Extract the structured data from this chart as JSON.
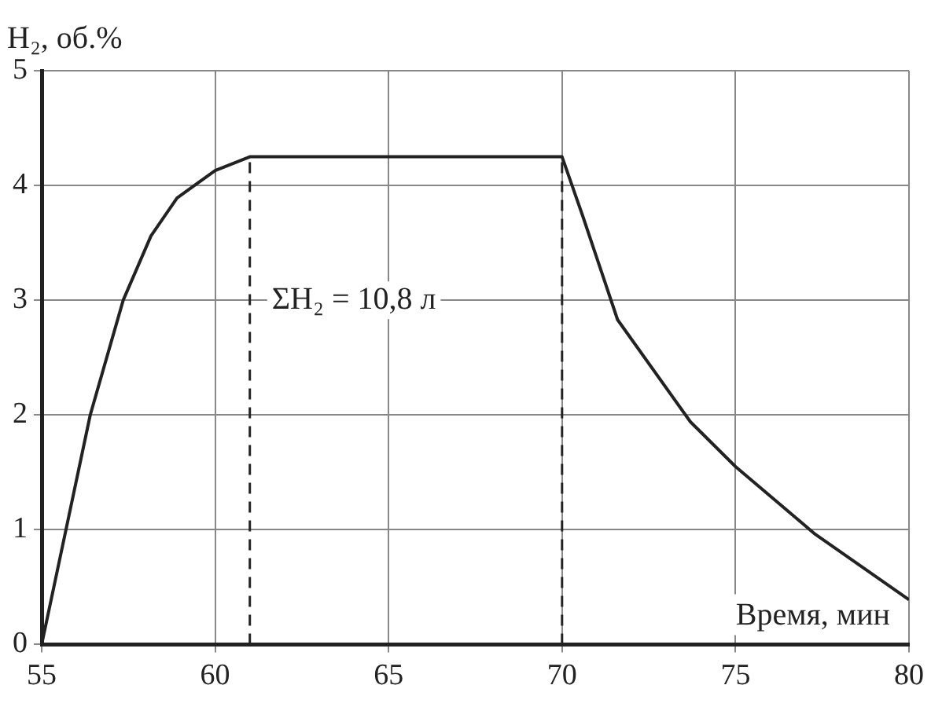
{
  "chart_data": {
    "type": "line",
    "xlabel": "Время, мин",
    "ylabel": "H₂, об.%",
    "x": [
      55,
      55.7,
      56.4,
      57.35,
      58.15,
      58.9,
      60,
      61,
      70,
      70.6,
      71.6,
      73.7,
      75,
      77.3,
      80
    ],
    "series": [
      {
        "color": "#222222",
        "values": [
          0,
          1.0,
          2.0,
          3.0,
          3.56,
          3.89,
          4.13,
          4.25,
          4.25,
          3.73,
          2.83,
          1.94,
          1.55,
          0.96,
          0.39
        ]
      }
    ],
    "xlim": [
      55,
      80
    ],
    "xticks": [
      55,
      60,
      65,
      70,
      75,
      80
    ],
    "ylim": [
      0,
      5
    ],
    "yticks": [
      0,
      1,
      2,
      3,
      4,
      5
    ],
    "grid": true,
    "legend": false,
    "marker": "none",
    "line_style": "solid",
    "ref_lines": [
      {
        "axis": "x",
        "value": 61,
        "line_style": "dashed",
        "color": "#222222"
      },
      {
        "axis": "x",
        "value": 70,
        "line_style": "dashed",
        "color": "#222222"
      }
    ],
    "annotations": [
      "ΣH₂ = 10,8 л"
    ]
  }
}
